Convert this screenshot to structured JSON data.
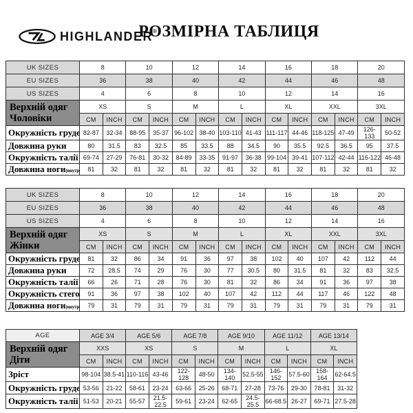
{
  "page": {
    "brand": "HIGHLANDER",
    "registered": "®",
    "title": "РОЗМІРНА ТАБЛИЦЯ",
    "logo_icon": "highlander-oval-monogram"
  },
  "colors": {
    "shaded_cell": "#d8d8d8",
    "shaded_cell_light": "#e2e2e2",
    "section_header_bg": "#8c8c8c",
    "border": "#2c2c2c"
  },
  "units": {
    "cm": "CM",
    "inch": "INCH"
  },
  "tables": [
    {
      "id": "men",
      "section_label": "Верхній одяг Чоловіки",
      "size_rows": [
        {
          "label": "UK SIZES",
          "shaded_values": false,
          "values": [
            "8",
            "10",
            "12",
            "14",
            "16",
            "18",
            "20"
          ]
        },
        {
          "label": "EU SIZES",
          "shaded_values": true,
          "values": [
            "36",
            "38",
            "40",
            "42",
            "44",
            "46",
            "48"
          ]
        },
        {
          "label": "US SIZES",
          "shaded_values": false,
          "values": [
            "4",
            "6",
            "8",
            "10",
            "12",
            "14",
            "16"
          ]
        }
      ],
      "letter_sizes": [
        "XS",
        "S",
        "M",
        "L",
        "XL",
        "XXL",
        "3XL"
      ],
      "letter_row_shaded": false,
      "measure_rows": [
        {
          "label": "Окружність грудей",
          "note": "",
          "values": [
            "82-87",
            "32-34",
            "88-95",
            "35-37",
            "96-102",
            "38-40",
            "103-110",
            "41-43",
            "111-117",
            "44-46",
            "118-125",
            "47-49",
            "126-133",
            "50-52"
          ]
        },
        {
          "label": "Довжина руки",
          "note": "",
          "values": [
            "80",
            "31.5",
            "83",
            "32.5",
            "85",
            "33.5",
            "88",
            "34.5",
            "90",
            "35.5",
            "92.5",
            "36.5",
            "95",
            "37.5"
          ]
        },
        {
          "label": "Окружність талії",
          "note": "",
          "values": [
            "69-74",
            "27-29",
            "76-81",
            "30-32",
            "84-89",
            "33-35",
            "91-97",
            "36-38",
            "99-104",
            "39-41",
            "107-112",
            "42-44",
            "116-122",
            "46-48"
          ]
        },
        {
          "label": "Довжина ноги",
          "note": "(внутрішня)",
          "values": [
            "81",
            "32",
            "81",
            "32",
            "81",
            "32",
            "81",
            "32",
            "81",
            "32",
            "81",
            "32",
            "81",
            "32"
          ]
        }
      ]
    },
    {
      "id": "women",
      "section_label": "Верхній одяг Жінки",
      "size_rows": [
        {
          "label": "UK SIZES",
          "shaded_values": false,
          "values": [
            "8",
            "10",
            "12",
            "14",
            "16",
            "18",
            "20"
          ]
        },
        {
          "label": "EU SIZES",
          "shaded_values": true,
          "values": [
            "36",
            "38",
            "40",
            "42",
            "44",
            "46",
            "48"
          ]
        },
        {
          "label": "US SIZES",
          "shaded_values": false,
          "values": [
            "4",
            "6",
            "8",
            "10",
            "12",
            "14",
            "16"
          ]
        }
      ],
      "letter_sizes": [
        "XS",
        "S",
        "M",
        "L",
        "XL",
        "XXL",
        "3XL"
      ],
      "letter_row_shaded": true,
      "measure_rows": [
        {
          "label": "Окружність грудей",
          "note": "",
          "values": [
            "81",
            "32",
            "86",
            "34",
            "91",
            "36",
            "97",
            "38",
            "102",
            "40",
            "107",
            "42",
            "112",
            "44"
          ]
        },
        {
          "label": "Довжина руки",
          "note": "",
          "values": [
            "72",
            "28.5",
            "74",
            "29",
            "76",
            "30",
            "77",
            "30.5",
            "80",
            "31.5",
            "81",
            "32",
            "83",
            "32.5"
          ]
        },
        {
          "label": "Окружність талії",
          "note": "",
          "values": [
            "66",
            "26",
            "71",
            "28",
            "76",
            "30",
            "81",
            "32",
            "86",
            "34",
            "91",
            "36",
            "97",
            "38"
          ]
        },
        {
          "label": "Окружність стегон",
          "note": "",
          "values": [
            "91",
            "36",
            "97",
            "38",
            "102",
            "40",
            "107",
            "42",
            "112",
            "44",
            "117",
            "46",
            "122",
            "48"
          ]
        },
        {
          "label": "Довжина ноги",
          "note": "(внутрішня)",
          "values": [
            "79",
            "31",
            "79",
            "31",
            "79",
            "31",
            "79",
            "31",
            "79",
            "31",
            "79",
            "31",
            "79",
            "31"
          ]
        }
      ]
    },
    {
      "id": "kids",
      "section_label": "Верхній одяг Діти",
      "size_rows": [
        {
          "label": "AGE",
          "label_light": true,
          "shaded_values": true,
          "values": [
            "AGE 3/4",
            "AGE 5/6",
            "AGE 7/8",
            "AGE 9/10",
            "AGE 11/12",
            "AGE 13/14"
          ]
        }
      ],
      "letter_sizes": [
        "XXS",
        "XS",
        "S",
        "M",
        "L",
        "XL"
      ],
      "letter_row_shaded": true,
      "measure_rows": [
        {
          "label": "Зріст",
          "note": "",
          "values": [
            "98-104",
            "38.5-41",
            "110-116",
            "43-46",
            "122-128",
            "48-50",
            "134-140",
            "52.5-55",
            "146-152",
            "57.5-60",
            "158-164",
            "62-64.5"
          ]
        },
        {
          "label": "Окружність грудей",
          "note": "",
          "values": [
            "53-56",
            "21-22",
            "58-61",
            "23-24",
            "63-66",
            "25-26",
            "68-71",
            "27-28",
            "73-76",
            "29-30",
            "78-81",
            "31-32"
          ]
        },
        {
          "label": "Окружність талії",
          "note": "",
          "values": [
            "51-53",
            "20-21",
            "55-57",
            "21.5-22.5",
            "59-61",
            "23-24",
            "62-65",
            "24.5-25.5",
            "66-68.5",
            "26-27",
            "69-71",
            "27.5-28"
          ]
        }
      ]
    }
  ]
}
